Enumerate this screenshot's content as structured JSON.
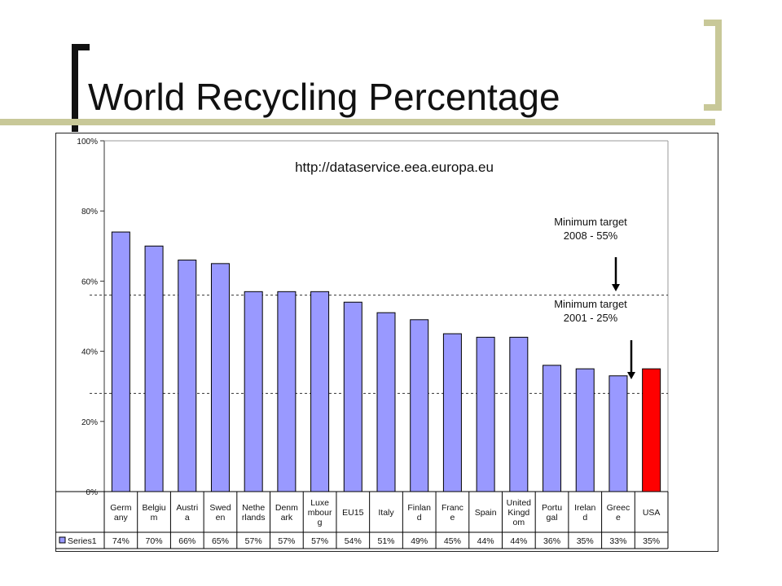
{
  "slide": {
    "title": "World Recycling Percentage"
  },
  "chart_data": {
    "type": "bar",
    "source_url": "http://dataservice.eea.europa.eu",
    "categories": [
      [
        "Germ",
        "any"
      ],
      [
        "Belgiu",
        "m"
      ],
      [
        "Austri",
        "a"
      ],
      [
        "Swed",
        "en"
      ],
      [
        "Nethe",
        "rlands"
      ],
      [
        "Denm",
        "ark"
      ],
      [
        "Luxe",
        "mbour",
        "g"
      ],
      [
        "EU15"
      ],
      [
        "Italy"
      ],
      [
        "Finlan",
        "d"
      ],
      [
        "Franc",
        "e"
      ],
      [
        "Spain"
      ],
      [
        "United",
        "Kingd",
        "om"
      ],
      [
        "Portu",
        "gal"
      ],
      [
        "Irelan",
        "d"
      ],
      [
        "Greec",
        "e"
      ],
      [
        "USA"
      ]
    ],
    "series": [
      {
        "name": "Series1",
        "values": [
          74,
          70,
          66,
          65,
          57,
          57,
          57,
          54,
          51,
          49,
          45,
          44,
          44,
          36,
          35,
          33,
          35
        ],
        "labels": [
          "74%",
          "70%",
          "66%",
          "65%",
          "57%",
          "57%",
          "57%",
          "54%",
          "51%",
          "49%",
          "45%",
          "44%",
          "44%",
          "36%",
          "35%",
          "33%",
          "35%"
        ]
      }
    ],
    "highlight_index": 16,
    "colors": {
      "bar": "#9999ff",
      "highlight": "#ff0000",
      "bracket": "#c8c898"
    },
    "ylim": [
      0,
      100
    ],
    "yticks": [
      0,
      20,
      40,
      60,
      80,
      100
    ],
    "ytick_labels": [
      "0%",
      "20%",
      "40%",
      "60%",
      "80%",
      "100%"
    ],
    "reference_lines": [
      {
        "value": 56,
        "style": "dashed"
      },
      {
        "value": 28,
        "style": "dashed"
      }
    ],
    "annotations": [
      {
        "lines": [
          "Minimum target",
          "2008 - 55%"
        ]
      },
      {
        "lines": [
          "Minimum target",
          "2001 - 25%"
        ]
      }
    ],
    "grid": false,
    "legend": "data-table-bottom"
  }
}
